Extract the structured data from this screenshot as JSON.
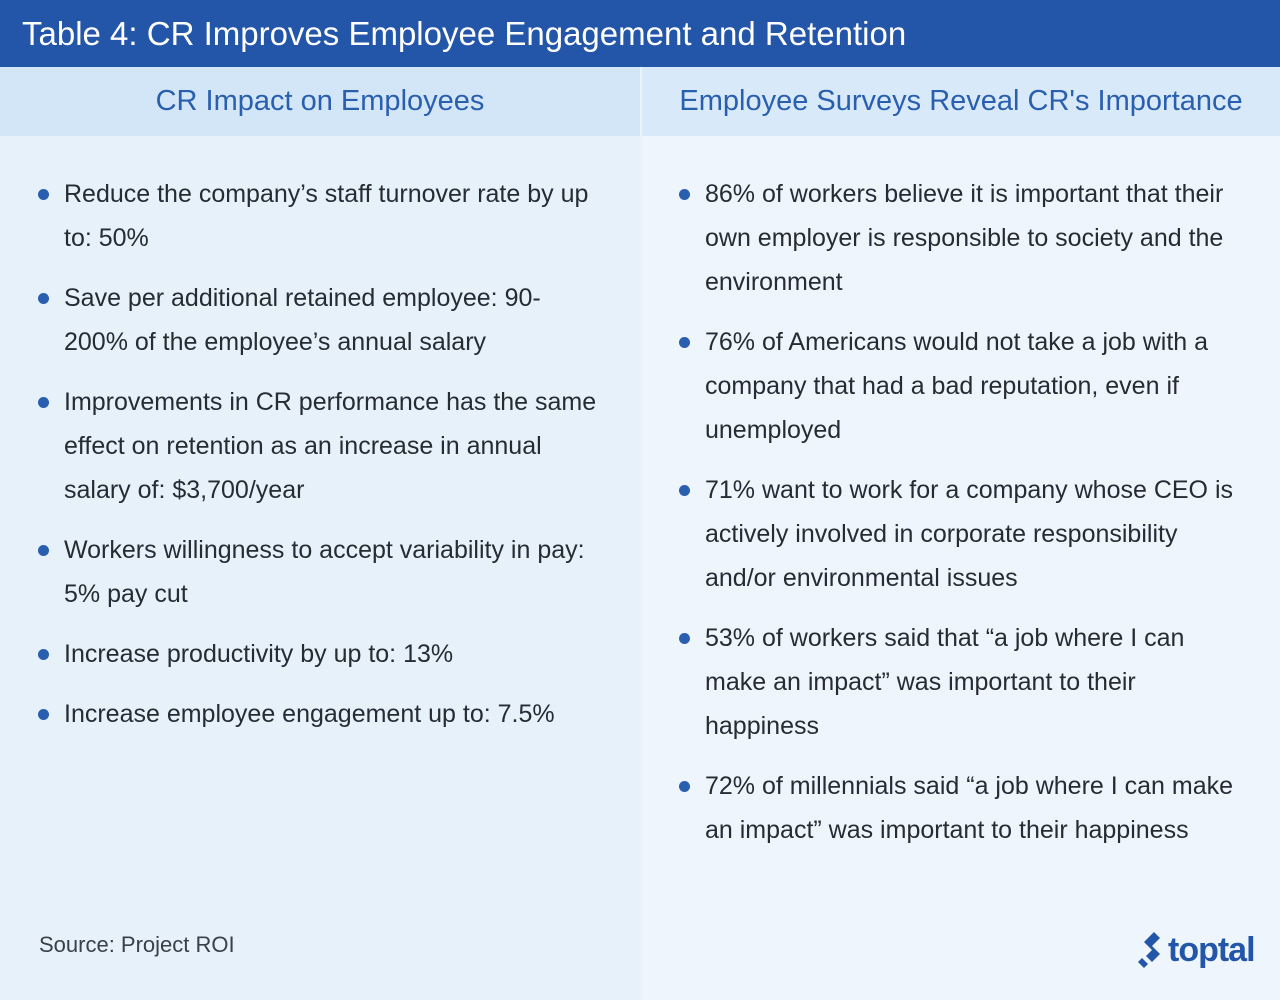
{
  "title": "Table 4: CR Improves Employee Engagement and Retention",
  "left_column": {
    "header": "CR Impact on Employees",
    "items": [
      "Reduce the company’s staff turnover rate by up to: 50%",
      "Save per additional retained employee: 90-200% of the employee’s annual salary",
      "Improvements in CR performance has the same effect on retention as an increase in annual salary of: $3,700/year",
      "Workers willingness to accept variability in pay: 5% pay cut",
      "Increase productivity by up to: 13%",
      "Increase employee engagement up to: 7.5%"
    ]
  },
  "right_column": {
    "header": "Employee Surveys Reveal CR's Importance",
    "items": [
      "86% of workers believe it is important that their own employer is responsible to society and the environment",
      "76% of Americans would not take a job with a company that had a bad reputation, even if unemployed",
      "71% want to work for a company whose CEO is actively involved in corporate responsibility and/or environmental issues",
      "53% of workers said that “a job where I can make an impact” was important to their happiness",
      "72% of millennials said “a job where I can make an impact” was important to their happiness"
    ]
  },
  "source": "Source: Project ROI",
  "logo": {
    "text": "toptal",
    "icon": "toptal-logo-icon"
  },
  "colors": {
    "title_bar": "#2356a8",
    "header_text": "#2a5fb0",
    "bullet": "#2a5fb0"
  }
}
